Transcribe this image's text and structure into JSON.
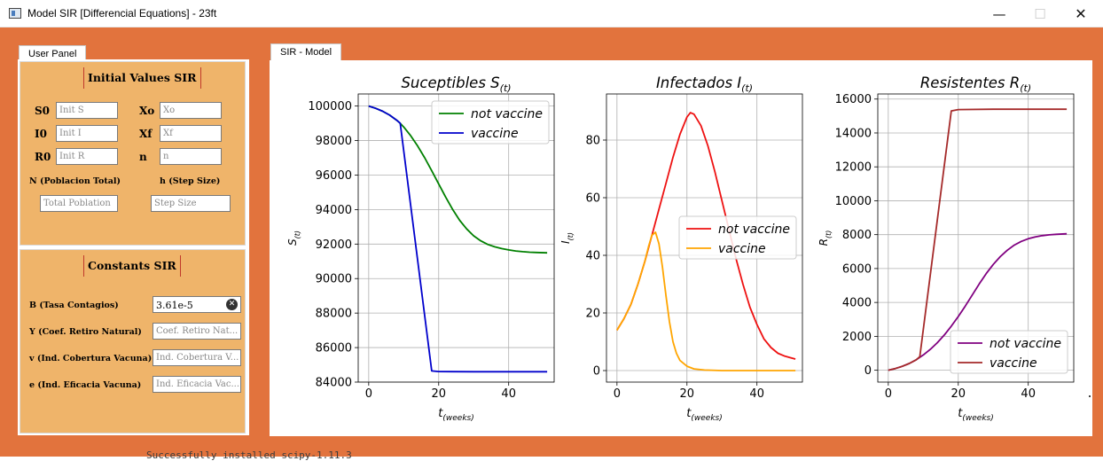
{
  "window": {
    "title": "Model SIR [Differencial Equations] - 23ft",
    "min_icon": "minimize-icon",
    "max_icon": "maximize-icon",
    "close_icon": "close-icon"
  },
  "tabs": {
    "user_panel": "User Panel",
    "sir_model": "SIR - Model"
  },
  "initial_values": {
    "title": "Initial Values SIR",
    "fields": [
      {
        "label": "S0",
        "placeholder": "Init S"
      },
      {
        "label": "Xo",
        "placeholder": "Xo"
      },
      {
        "label": "I0",
        "placeholder": "Init I"
      },
      {
        "label": "Xf",
        "placeholder": "Xf"
      },
      {
        "label": "R0",
        "placeholder": "Init R"
      },
      {
        "label": "n",
        "placeholder": "n"
      }
    ],
    "n_label": "N (Poblacion Total)",
    "n_placeholder": "Total Poblation",
    "h_label": "h (Step Size)",
    "h_placeholder": "Step Size"
  },
  "constants": {
    "title": "Constants SIR",
    "fields": [
      {
        "label": "B (Tasa Contagios)",
        "value": "3.61e-5",
        "placeholder": ""
      },
      {
        "label": "Y (Coef. Retiro Natural)",
        "value": "",
        "placeholder": "Coef. Retiro Nat..."
      },
      {
        "label": "v (Ind. Cobertura Vacuna)",
        "value": "",
        "placeholder": "Ind. Cobertura V..."
      },
      {
        "label": "e (Ind. Eficacia Vacuna)",
        "value": "",
        "placeholder": "Ind. Eficacia Vac..."
      }
    ]
  },
  "terminal_text": "Successfully installed scipy-1.11.3",
  "colors": {
    "accent": "#e2733d",
    "panel": "#efb46a",
    "not_vaccine_S": "#008000",
    "vaccine_S": "#0000cc",
    "not_vaccine_I": "#ee1111",
    "vaccine_I": "#ffa500",
    "not_vaccine_R": "#800080",
    "vaccine_R": "#a52a2a"
  },
  "chart_data": [
    {
      "type": "line",
      "title": "Suceptibles S",
      "title_sub": "(t)",
      "xlabel": "t",
      "xlabel_sub": "(weeks)",
      "ylabel": "S",
      "ylabel_sub": "(t)",
      "xlim": [
        -3,
        53
      ],
      "ylim": [
        84000,
        100700
      ],
      "xticks": [
        0,
        20,
        40
      ],
      "yticks": [
        84000,
        86000,
        88000,
        90000,
        92000,
        94000,
        96000,
        98000,
        100000
      ],
      "legend": "top-right",
      "series": [
        {
          "name": "not vaccine",
          "color": "#008000",
          "x": [
            0,
            2,
            4,
            6,
            8,
            9,
            10,
            12,
            14,
            16,
            18,
            20,
            22,
            24,
            26,
            28,
            30,
            32,
            34,
            36,
            38,
            40,
            42,
            44,
            46,
            48,
            51
          ],
          "y": [
            100000,
            99870,
            99700,
            99470,
            99180,
            99000,
            98790,
            98280,
            97680,
            97000,
            96250,
            95480,
            94720,
            94000,
            93380,
            92880,
            92480,
            92190,
            91980,
            91840,
            91740,
            91660,
            91600,
            91560,
            91530,
            91510,
            91490
          ]
        },
        {
          "name": "vaccine",
          "color": "#0000cc",
          "x": [
            0,
            2,
            4,
            6,
            8,
            9,
            18,
            20,
            30,
            40,
            51
          ],
          "y": [
            100000,
            99870,
            99700,
            99470,
            99180,
            99000,
            84650,
            84610,
            84600,
            84600,
            84600
          ]
        }
      ]
    },
    {
      "type": "line",
      "title": "Infectados I",
      "title_sub": "(t)",
      "xlabel": "t",
      "xlabel_sub": "(weeks)",
      "ylabel": "I",
      "ylabel_sub": "(t)",
      "xlim": [
        -3,
        53
      ],
      "ylim": [
        -4,
        96
      ],
      "xticks": [
        0,
        20,
        40
      ],
      "yticks": [
        0,
        20,
        40,
        60,
        80
      ],
      "legend": "center-right",
      "series": [
        {
          "name": "not vaccine",
          "color": "#ee1111",
          "x": [
            0,
            2,
            4,
            6,
            8,
            10,
            12,
            14,
            16,
            18,
            20,
            21,
            22,
            24,
            26,
            28,
            30,
            32,
            34,
            36,
            38,
            40,
            42,
            44,
            46,
            48,
            51
          ],
          "y": [
            14,
            18,
            23,
            30,
            38,
            47,
            56,
            65,
            74,
            82,
            88,
            89.5,
            89,
            85,
            78,
            69,
            59,
            49,
            39,
            30,
            22,
            16,
            11,
            8,
            6,
            5,
            4
          ]
        },
        {
          "name": "vaccine",
          "color": "#ffa500",
          "x": [
            0,
            2,
            4,
            6,
            8,
            9,
            10,
            11,
            12,
            13,
            14,
            15,
            16,
            17,
            18,
            20,
            22,
            25,
            30,
            40,
            51
          ],
          "y": [
            14,
            18,
            23,
            30,
            38,
            43,
            47,
            48,
            44,
            36,
            26,
            17,
            10,
            6,
            3.5,
            1.5,
            0.6,
            0.2,
            0,
            0,
            0
          ]
        }
      ]
    },
    {
      "type": "line",
      "title": "Resistentes R",
      "title_sub": "(t)",
      "xlabel": "t",
      "xlabel_sub": "(weeks)",
      "ylabel": "R",
      "ylabel_sub": "(t)",
      "xlim": [
        -3,
        53
      ],
      "ylim": [
        -700,
        16300
      ],
      "xticks": [
        0,
        20,
        40
      ],
      "yticks": [
        0,
        2000,
        4000,
        6000,
        8000,
        10000,
        12000,
        14000,
        16000
      ],
      "legend": "bottom-right",
      "series": [
        {
          "name": "not vaccine",
          "color": "#800080",
          "x": [
            0,
            2,
            4,
            6,
            8,
            10,
            12,
            14,
            16,
            18,
            20,
            22,
            24,
            26,
            28,
            30,
            32,
            34,
            36,
            38,
            40,
            42,
            44,
            46,
            48,
            51
          ],
          "y": [
            0,
            100,
            230,
            400,
            620,
            900,
            1230,
            1620,
            2080,
            2600,
            3170,
            3790,
            4440,
            5090,
            5700,
            6240,
            6700,
            7080,
            7380,
            7600,
            7760,
            7870,
            7940,
            7990,
            8020,
            8050
          ]
        },
        {
          "name": "vaccine",
          "color": "#a52a2a",
          "x": [
            0,
            2,
            4,
            6,
            8,
            9,
            18,
            20,
            30,
            40,
            51
          ],
          "y": [
            0,
            100,
            230,
            400,
            620,
            800,
            15300,
            15380,
            15400,
            15400,
            15400
          ]
        }
      ]
    }
  ]
}
